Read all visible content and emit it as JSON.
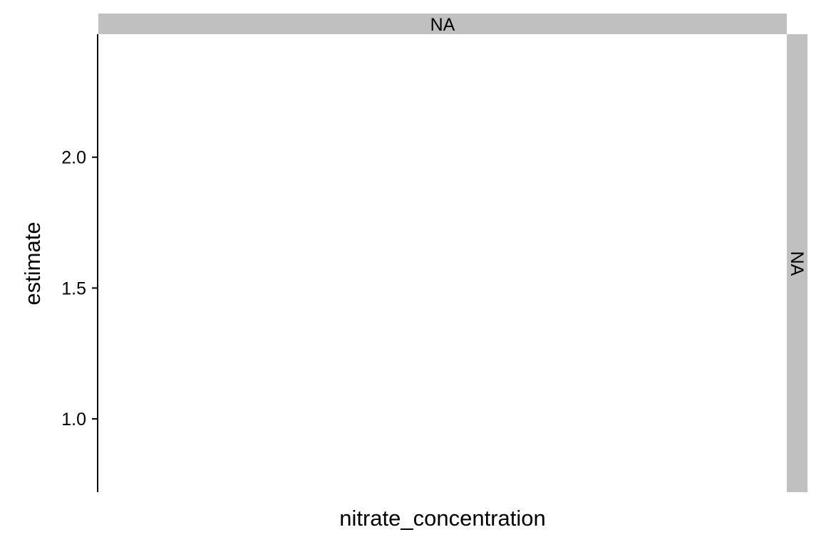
{
  "chart_data": {
    "type": "scatter",
    "facet_strip_top": "NA",
    "facet_strip_right": "NA",
    "xlabel": "nitrate_concentration",
    "ylabel": "estimate",
    "y_ticks": [
      1.0,
      1.5,
      2.0
    ],
    "y_tick_labels": [
      "1.0",
      "1.5",
      "2.0"
    ],
    "ylim": [
      0.72,
      2.47
    ],
    "series": [],
    "grid": false,
    "strip_color": "#c0c0c0",
    "axis_color": "#000000"
  }
}
